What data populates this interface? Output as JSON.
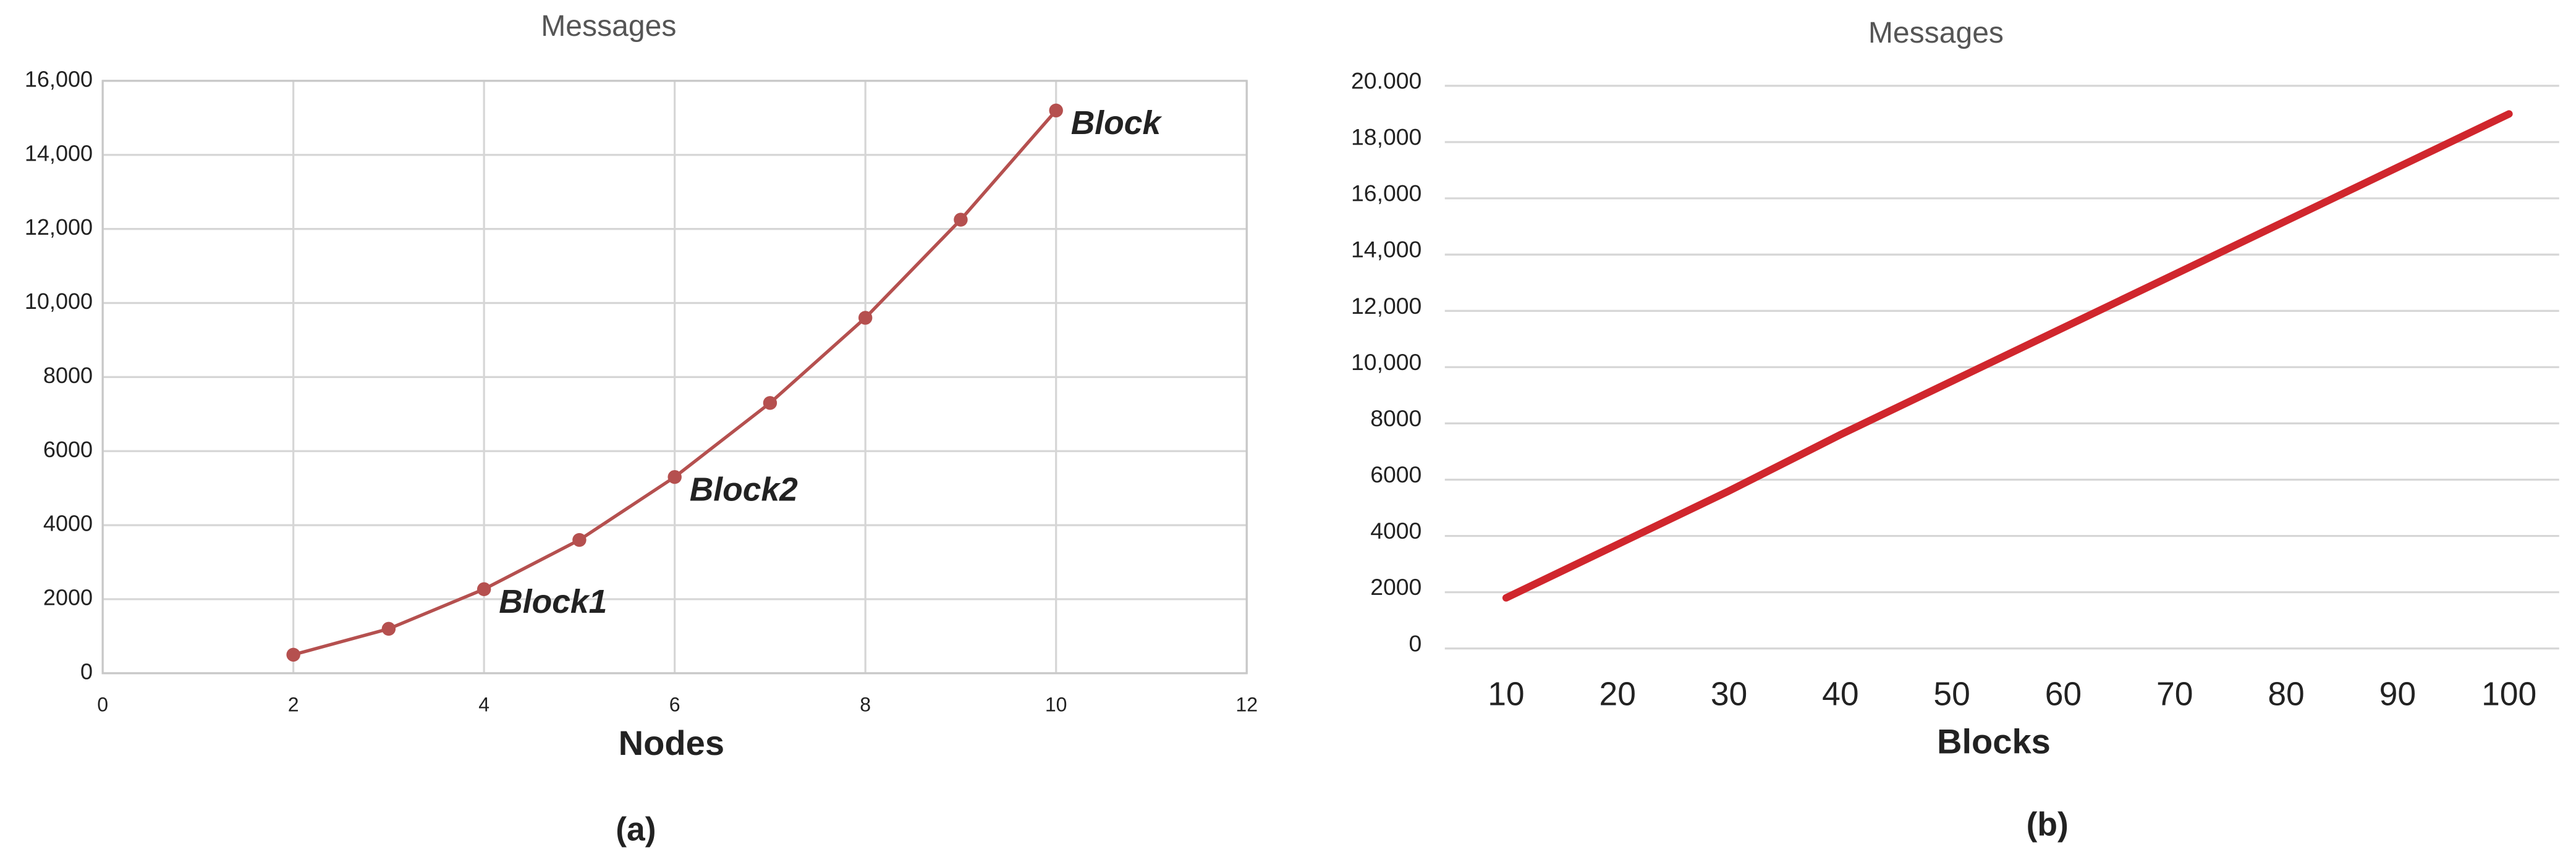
{
  "chart_data": [
    {
      "type": "line",
      "title": "Messages",
      "x_label": "Nodes",
      "caption": "(a)",
      "x": [
        2,
        3,
        4,
        5,
        6,
        7,
        8,
        9,
        10
      ],
      "values": [
        500,
        1200,
        2270,
        3600,
        5300,
        7300,
        9600,
        12250,
        15200
      ],
      "point_labels": [
        null,
        null,
        "Block1",
        null,
        "Block2",
        null,
        null,
        null,
        "Block"
      ],
      "color": "#b5504f",
      "markers": true,
      "xlim": [
        0,
        12
      ],
      "xticks": [
        0,
        2,
        4,
        6,
        8,
        10,
        12
      ],
      "ylim": [
        0,
        16000
      ],
      "yticks": [
        0,
        2000,
        4000,
        6000,
        8000,
        {
          "value": 10000,
          "label": "10,000"
        },
        {
          "value": 12000,
          "label": "12,000"
        },
        {
          "value": 14000,
          "label": "14,000"
        },
        {
          "value": 16000,
          "label": "16,000"
        }
      ],
      "grid": "both"
    },
    {
      "type": "line",
      "title": "Messages",
      "x_label": "Blocks",
      "caption": "(b)",
      "x": [
        10,
        20,
        30,
        40,
        50,
        60,
        70,
        80,
        90,
        100
      ],
      "values": [
        1800,
        3700,
        5600,
        7600,
        9500,
        11400,
        13300,
        15200,
        17100,
        19000
      ],
      "color": "#d0262d",
      "markers": false,
      "xlim": [
        4.5,
        104.5
      ],
      "xticks": [
        10,
        20,
        30,
        40,
        50,
        60,
        70,
        80,
        90,
        100
      ],
      "ylim": [
        0,
        20000
      ],
      "yticks": [
        0,
        2000,
        4000,
        6000,
        8000,
        {
          "value": 10000,
          "label": "10,000"
        },
        {
          "value": 12000,
          "label": "12,000"
        },
        {
          "value": 14000,
          "label": "14,000"
        },
        {
          "value": 16000,
          "label": "16,000"
        },
        {
          "value": 18000,
          "label": "18,000"
        },
        {
          "value": 20000,
          "label": "20.000"
        }
      ],
      "grid": "y"
    }
  ]
}
